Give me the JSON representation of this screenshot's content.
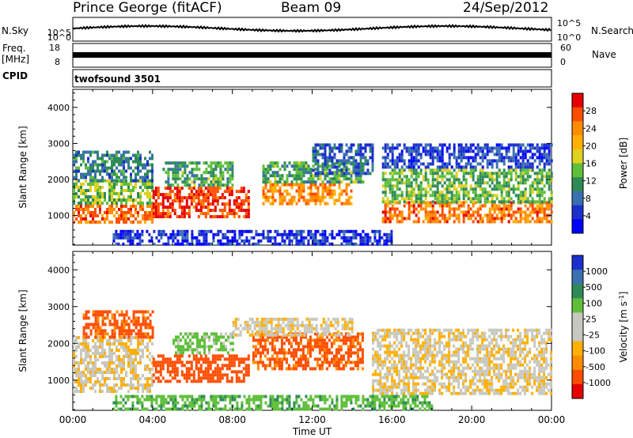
{
  "header": {
    "station": "Prince George (fitACF)",
    "beam": "Beam 09",
    "date": "24/Sep/2012"
  },
  "summary_panels": {
    "nsky": {
      "label": "N.Sky",
      "ticks": [
        "10^5",
        "10^0"
      ]
    },
    "nsearch": {
      "label": "N.Search",
      "ticks": [
        "10^5",
        "10^0"
      ]
    },
    "freq": {
      "label_top": "Freq.",
      "label_bottom": "[MHz]",
      "ticks": [
        "18",
        "8"
      ]
    },
    "nave": {
      "label": "Nave",
      "ticks": [
        "60",
        "0"
      ]
    },
    "cpid": {
      "label": "CPID",
      "value": "twofsound 3501"
    }
  },
  "chart_data": [
    {
      "type": "heatmap",
      "title": "",
      "xlabel": "",
      "ylabel": "Slant Range [km]",
      "xlim": [
        0,
        24
      ],
      "ylim": [
        180,
        4500
      ],
      "y_ticks": [
        "1000",
        "2000",
        "3000",
        "4000"
      ],
      "colorbar": {
        "label": "Power [dB]",
        "ticks": [
          "28",
          "24",
          "20",
          "16",
          "12",
          "8",
          "4"
        ],
        "colors": [
          "#e60000",
          "#ff4d00",
          "#ff8c00",
          "#ffb000",
          "#e0d020",
          "#5fbf3a",
          "#2e8b57",
          "#3a6fb0",
          "#1a2fcc",
          "#0000ff"
        ]
      },
      "regions": [
        {
          "t0": 0.0,
          "t1": 4.0,
          "r0": 800,
          "r1": 1300,
          "level": 24
        },
        {
          "t0": 0.0,
          "t1": 4.0,
          "r0": 1300,
          "r1": 2000,
          "level": 14
        },
        {
          "t0": 0.0,
          "t1": 4.0,
          "r0": 2000,
          "r1": 2800,
          "level": 9
        },
        {
          "t0": 4.0,
          "t1": 8.8,
          "r0": 1000,
          "r1": 1800,
          "level": 27
        },
        {
          "t0": 4.5,
          "t1": 8.0,
          "r0": 1800,
          "r1": 2500,
          "level": 12
        },
        {
          "t0": 9.5,
          "t1": 14.0,
          "r0": 1300,
          "r1": 1900,
          "level": 22
        },
        {
          "t0": 9.5,
          "t1": 14.5,
          "r0": 1900,
          "r1": 2500,
          "level": 12
        },
        {
          "t0": 12.0,
          "t1": 15.0,
          "r0": 2200,
          "r1": 3000,
          "level": 7
        },
        {
          "t0": 15.5,
          "t1": 24.0,
          "r0": 800,
          "r1": 1400,
          "level": 24
        },
        {
          "t0": 15.5,
          "t1": 24.0,
          "r0": 1400,
          "r1": 2300,
          "level": 13
        },
        {
          "t0": 15.5,
          "t1": 24.0,
          "r0": 2300,
          "r1": 3000,
          "level": 5
        },
        {
          "t0": 2.0,
          "t1": 16.0,
          "r0": 200,
          "r1": 600,
          "level": 4
        }
      ]
    },
    {
      "type": "heatmap",
      "title": "",
      "xlabel": "Time UT",
      "ylabel": "Slant Range [km]",
      "xlim": [
        0,
        24
      ],
      "ylim": [
        180,
        4500
      ],
      "x_ticks": [
        "00:00",
        "04:00",
        "08:00",
        "12:00",
        "16:00",
        "20:00",
        "00:00"
      ],
      "y_ticks": [
        "1000",
        "2000",
        "3000",
        "4000"
      ],
      "colorbar": {
        "label": "Velocity [m s",
        "label_sup": "-1",
        "label_end": "]",
        "ticks": [
          "1000",
          "500",
          "100",
          "25",
          "-25",
          "-100",
          "-500",
          "-1000"
        ],
        "colors": [
          "#1a2fcc",
          "#3a6fb0",
          "#2e8b57",
          "#5fbf3a",
          "#c8c8c0",
          "#c8c8c0",
          "#ffb000",
          "#ff8c00",
          "#ff4d00",
          "#e60000"
        ]
      },
      "regions": [
        {
          "t0": 0.0,
          "t1": 4.0,
          "r0": 700,
          "r1": 2200,
          "value": 0
        },
        {
          "t0": 0.5,
          "t1": 4.0,
          "r0": 2200,
          "r1": 2900,
          "value": -300
        },
        {
          "t0": 4.0,
          "t1": 8.8,
          "r0": 1000,
          "r1": 1700,
          "value": -400
        },
        {
          "t0": 5.0,
          "t1": 8.0,
          "r0": 1700,
          "r1": 2300,
          "value": 150
        },
        {
          "t0": 9.0,
          "t1": 14.5,
          "r0": 1300,
          "r1": 2300,
          "value": -300
        },
        {
          "t0": 8.0,
          "t1": 14.0,
          "r0": 2200,
          "r1": 2700,
          "value": 0
        },
        {
          "t0": 15.0,
          "t1": 24.0,
          "r0": 600,
          "r1": 2400,
          "value": 0
        },
        {
          "t0": 2.0,
          "t1": 18.0,
          "r0": 200,
          "r1": 600,
          "value": 200
        }
      ]
    }
  ]
}
